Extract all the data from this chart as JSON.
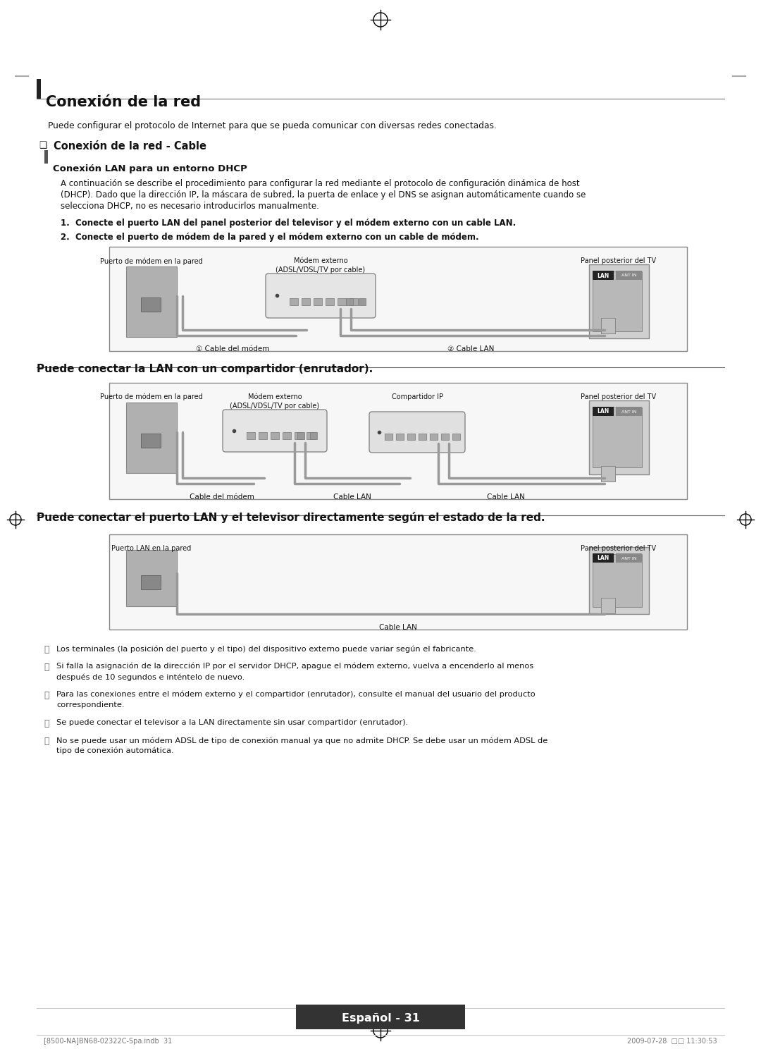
{
  "page_bg": "#ffffff",
  "title_main": "Conexión de la red",
  "subtitle1": "Conexión de la red - Cable",
  "subtitle2": "Conexión LAN para un entorno DHCP",
  "para1_lines": [
    "A continuación se describe el procedimiento para configurar la red mediante el protocolo de configuración dinámica de host",
    "(DHCP). Dado que la dirección IP, la máscara de subred, la puerta de enlace y el DNS se asignan automáticamente cuando se",
    "selecciona DHCP, no es necesario introducirlos manualmente."
  ],
  "item1": "1.  Conecte el puerto LAN del panel posterior del televisor y el módem externo con un cable LAN.",
  "item2": "2.  Conecte el puerto de módem de la pared y el módem externo con un cable de módem.",
  "diag1": {
    "lbl_left": "Puerto de módem en la pared",
    "lbl_center": "Módem externo\n(ADSL/VDSL/TV por cable)",
    "lbl_right": "Panel posterior del TV",
    "lbl_cable1": "① Cable del módem",
    "lbl_cable2": "② Cable LAN"
  },
  "heading2": "Puede conectar la LAN con un compartidor (enrutador).",
  "diag2": {
    "lbl_left": "Puerto de módem en la pared",
    "lbl_center": "Módem externo\n(ADSL/VDSL/TV por cable)",
    "lbl_router": "Compartidor IP",
    "lbl_right": "Panel posterior del TV",
    "lbl_cable1": "Cable del módem",
    "lbl_cable2": "Cable LAN",
    "lbl_cable3": "Cable LAN"
  },
  "heading3": "Puede conectar el puerto LAN y el televisor directamente según el estado de la red.",
  "diag3": {
    "lbl_left": "Puerto LAN en la pared",
    "lbl_right": "Panel posterior del TV",
    "lbl_cable": "Cable LAN"
  },
  "notes": [
    [
      "Los terminales (la posición del puerto y el tipo) del dispositivo externo puede variar según el fabricante."
    ],
    [
      "Si falla la asignación de la dirección IP por el servidor DHCP, apague el módem externo, vuelva a encenderlo al menos",
      "después de 10 segundos e inténtelo de nuevo."
    ],
    [
      "Para las conexiones entre el módem externo y el compartidor (enrutador), consulte el manual del usuario del producto",
      "correspondiente."
    ],
    [
      "Se puede conectar el televisor a la LAN directamente sin usar compartidor (enrutador)."
    ],
    [
      "No se puede usar un módem ADSL de tipo de conexión manual ya que no admite DHCP. Se debe usar un módem ADSL de",
      "tipo de conexión automática."
    ]
  ],
  "footer_center": "Español - 31",
  "footer_left": "[8500-NA]BN68-02322C-Spa.indb  31",
  "footer_right": "2009-07-28  □□ 11:30:53"
}
